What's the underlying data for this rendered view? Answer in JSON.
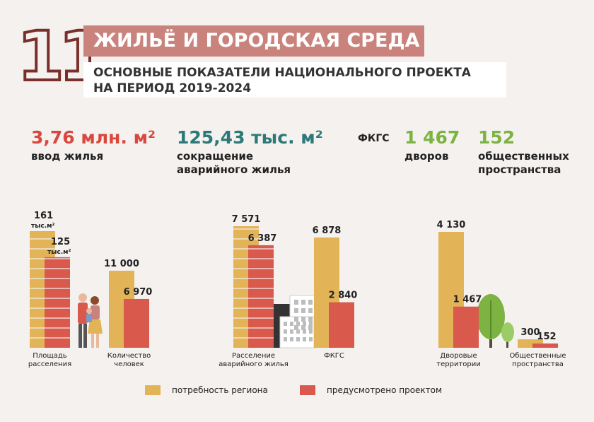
{
  "header": {
    "number": "11",
    "title": "ЖИЛЬЁ И ГОРОДСКАЯ СРЕДА",
    "subtitle_line1": "ОСНОВНЫЕ ПОКАЗАТЕЛИ НАЦИОНАЛЬНОГО ПРОЕКТА",
    "subtitle_line2": "НА ПЕРИОД 2019-2024"
  },
  "kpis": {
    "housing": {
      "value": "3,76 млн. м²",
      "label": "ввод жилья",
      "color": "#d9473e"
    },
    "emergency": {
      "value": "125,43 тыс. м²",
      "label_line1": "сокращение",
      "label_line2": "аварийного жилья",
      "color": "#2b7a78"
    },
    "fkgs_tag": "ФКГС",
    "yards": {
      "value": "1 467",
      "label": "дворов",
      "color": "#7cb342"
    },
    "public": {
      "value": "152",
      "label_line1": "общественных",
      "label_line2": "пространства",
      "color": "#7cb342"
    }
  },
  "chart_data": {
    "type": "bar",
    "colors": {
      "need": "#e3b457",
      "project": "#d9594c"
    },
    "series": [
      {
        "name": "потребность региона"
      },
      {
        "name": "предусмотрено проектом"
      }
    ],
    "groups": [
      {
        "category": "Площадь расселения",
        "label_lines": [
          "Площадь",
          "расселения"
        ],
        "need": 161,
        "project": 125,
        "need_label": "161",
        "project_label": "125",
        "unit": "тыс.м²"
      },
      {
        "category": "Количество человек",
        "label_lines": [
          "Количество",
          "человек"
        ],
        "need": 11000,
        "project": 6970,
        "need_label": "11 000",
        "project_label": "6 970"
      },
      {
        "category": "Расселение аварийного жилья",
        "label_lines": [
          "Расселение",
          "аварийного жилья"
        ],
        "need": 7571,
        "project": 6387,
        "need_label": "7 571",
        "project_label": "6 387"
      },
      {
        "category": "ФКГС",
        "label_lines": [
          "ФКГС"
        ],
        "need": 6878,
        "project": 2840,
        "need_label": "6 878",
        "project_label": "2 840"
      },
      {
        "category": "Дворовые территории",
        "label_lines": [
          "Дворовые",
          "территории"
        ],
        "need": 4130,
        "project": 1467,
        "need_label": "4 130",
        "project_label": "1 467"
      },
      {
        "category": "Общественные пространства",
        "label_lines": [
          "Общественные",
          "пространства"
        ],
        "need": 300,
        "project": 152,
        "need_label": "300",
        "project_label": "152"
      }
    ]
  }
}
